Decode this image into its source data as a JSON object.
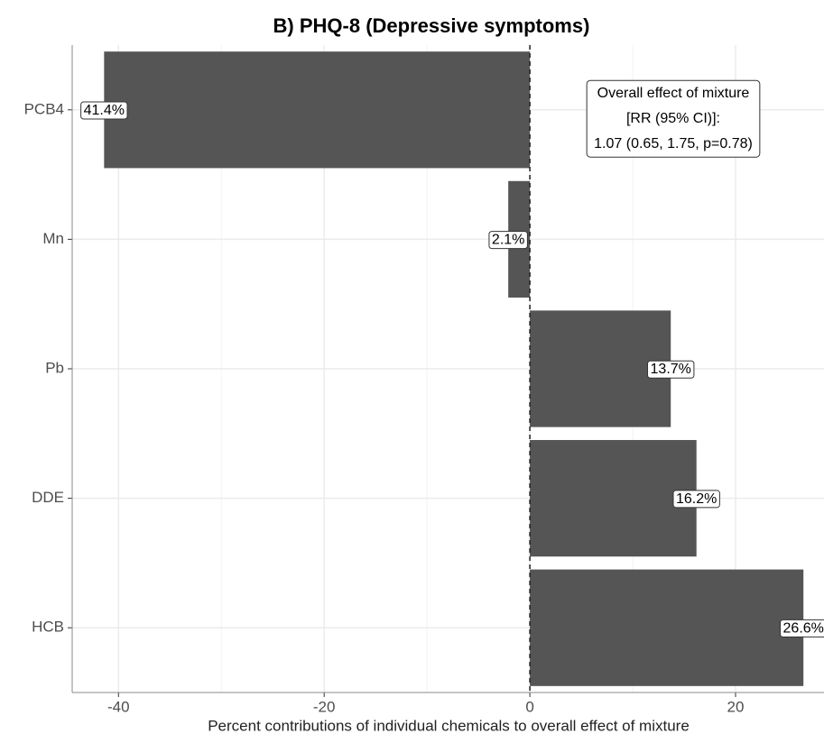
{
  "chart_data": {
    "type": "barh",
    "title": "B)  PHQ-8 (Depressive symptoms)",
    "x_label": "Percent contributions of individual chemicals to overall effect of mixture",
    "categories": [
      "PCB4",
      "Mn",
      "Pb",
      "DDE",
      "HCB"
    ],
    "values": [
      -41.4,
      -2.1,
      13.7,
      16.2,
      26.6
    ],
    "value_labels": [
      "41.4%",
      "2.1%",
      "13.7%",
      "16.2%",
      "26.6%"
    ],
    "color": "#555555",
    "xlim": [
      -44.5,
      28.6
    ],
    "xticks": [
      -40,
      -20,
      0,
      20
    ],
    "grid": true,
    "reference_line": 0,
    "annotation": [
      "Overall effect of mixture",
      "[RR (95% CI)]:",
      "1.07 (0.65, 1.75, p=0.78)"
    ]
  }
}
